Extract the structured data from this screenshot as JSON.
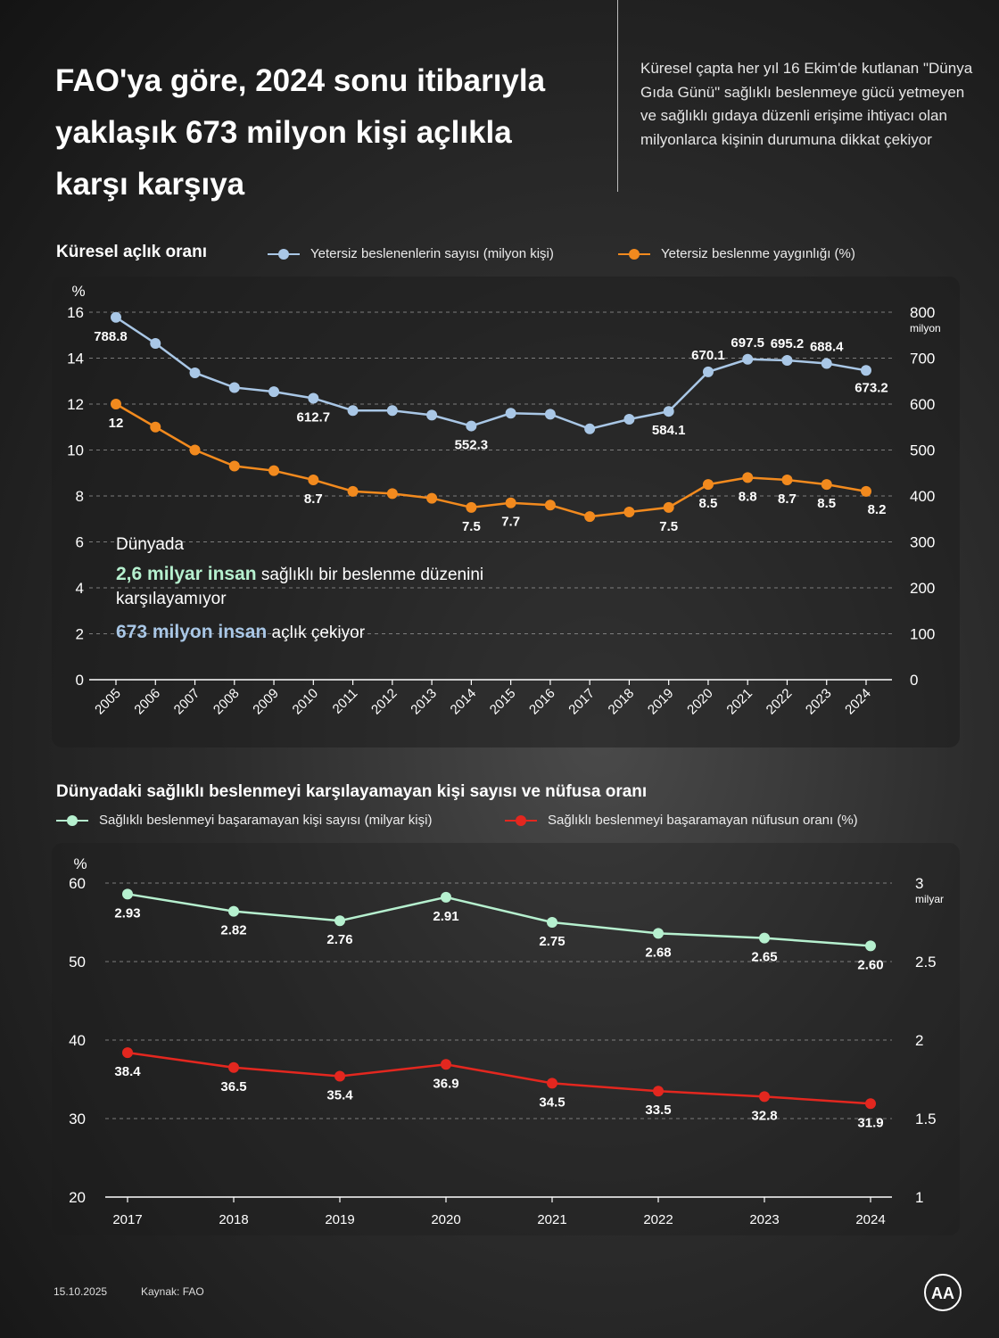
{
  "header": {
    "title": "FAO'ya göre, 2024 sonu itibarıyla yaklaşık 673 milyon kişi açlıkla karşı karşıya",
    "intro": "Küresel çapta her yıl 16 Ekim'de kutlanan \"Dünya Gıda Günü\" sağlıklı beslenmeye gücü yetmeyen ve sağlıklı gıdaya düzenli erişime ihtiyacı olan milyonlarca kişinin durumuna dikkat çekiyor"
  },
  "overlay": {
    "line1": "Dünyada",
    "line2_strong": "2,6 milyar insan",
    "line2_rest": " sağlıklı bir beslenme düzenini karşılayamıyor",
    "line3_strong": "673 milyon insan",
    "line3_rest": " açlık çekiyor"
  },
  "footer": {
    "date": "15.10.2025",
    "source": "Kaynak: FAO",
    "logo_text": "AA"
  },
  "colors": {
    "blue": "#a9c7e6",
    "orange": "#f28a1e",
    "green": "#b6f0cf",
    "red": "#e3271f",
    "grid": "#9a9a9a"
  },
  "chart_data": [
    {
      "type": "line",
      "title": "Küresel açlık oranı",
      "x": [
        "2005",
        "2006",
        "2007",
        "2008",
        "2009",
        "2010",
        "2011",
        "2012",
        "2013",
        "2014",
        "2015",
        "2016",
        "2017",
        "2018",
        "2019",
        "2020",
        "2021",
        "2022",
        "2023",
        "2024"
      ],
      "left_axis": {
        "unit": "%",
        "ticks": [
          0,
          2,
          4,
          6,
          8,
          10,
          12,
          14,
          16
        ],
        "range": [
          0,
          16
        ]
      },
      "right_axis": {
        "unit": "milyon",
        "ticks": [
          0,
          100,
          200,
          300,
          400,
          500,
          600,
          700,
          800
        ],
        "range": [
          0,
          800
        ]
      },
      "series": [
        {
          "name": "Yetersiz beslenenlerin sayısı (milyon kişi)",
          "axis": "right",
          "color": "#a9c7e6",
          "values": [
            788.8,
            732,
            668,
            636,
            627,
            612.7,
            586,
            586,
            576,
            552.3,
            580,
            578,
            546,
            567,
            584.1,
            670.1,
            697.5,
            695.2,
            688.4,
            673.2
          ],
          "labels": [
            "788.8",
            "",
            "",
            "",
            "",
            "612.7",
            "",
            "",
            "",
            "552.3",
            "",
            "",
            "",
            "",
            "584.1",
            "670.1",
            "697.5",
            "695.2",
            "688.4",
            "673.2"
          ]
        },
        {
          "name": "Yetersiz beslenme yaygınlığı (%)",
          "axis": "left",
          "color": "#f28a1e",
          "values": [
            12,
            11,
            10,
            9.3,
            9.1,
            8.7,
            8.2,
            8.1,
            7.9,
            7.5,
            7.7,
            7.6,
            7.1,
            7.3,
            7.5,
            8.5,
            8.8,
            8.7,
            8.5,
            8.2
          ],
          "labels": [
            "12",
            "",
            "",
            "",
            "",
            "8.7",
            "",
            "",
            "",
            "7.5",
            "7.7",
            "",
            "",
            "",
            "7.5",
            "8.5",
            "8.8",
            "8.7",
            "8.5",
            "8.2"
          ]
        }
      ]
    },
    {
      "type": "line",
      "title": "Dünyadaki sağlıklı beslenmeyi karşılayamayan kişi sayısı ve nüfusa oranı",
      "x": [
        "2017",
        "2018",
        "2019",
        "2020",
        "2021",
        "2022",
        "2023",
        "2024"
      ],
      "left_axis": {
        "unit": "%",
        "ticks": [
          20,
          30,
          40,
          50,
          60
        ],
        "range": [
          20,
          60
        ]
      },
      "right_axis": {
        "unit": "milyar",
        "ticks": [
          "1",
          "1.5",
          "2",
          "2.5",
          "3"
        ],
        "range": [
          1,
          3
        ]
      },
      "series": [
        {
          "name": "Sağlıklı beslenmeyi başaramayan kişi sayısı (milyar kişi)",
          "axis": "right",
          "color": "#b6f0cf",
          "values": [
            2.93,
            2.82,
            2.76,
            2.91,
            2.75,
            2.68,
            2.65,
            2.6
          ],
          "labels": [
            "2.93",
            "2.82",
            "2.76",
            "2.91",
            "2.75",
            "2.68",
            "2.65",
            "2.60"
          ]
        },
        {
          "name": "Sağlıklı beslenmeyi başaramayan nüfusun oranı (%)",
          "axis": "left",
          "color": "#e3271f",
          "values": [
            38.4,
            36.5,
            35.4,
            36.9,
            34.5,
            33.5,
            32.8,
            31.9
          ],
          "labels": [
            "38.4",
            "36.5",
            "35.4",
            "36.9",
            "34.5",
            "33.5",
            "32.8",
            "31.9"
          ]
        }
      ]
    }
  ]
}
